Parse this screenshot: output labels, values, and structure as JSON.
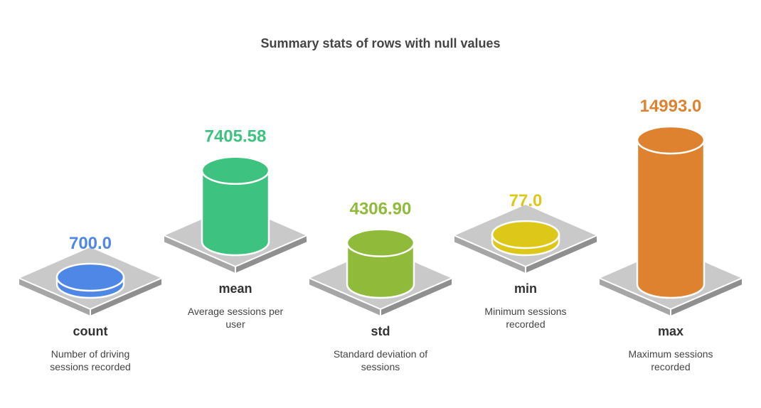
{
  "chart_data": {
    "type": "bar",
    "title": "Summary stats of rows with null values",
    "categories": [
      "count",
      "mean",
      "std",
      "min",
      "max"
    ],
    "values": [
      700.0,
      7405.58,
      4306.9,
      77.0,
      14993.0
    ],
    "value_labels": [
      "700.0",
      "7405.58",
      "4306.90",
      "77.0",
      "14993.0"
    ],
    "descriptions": [
      [
        "Number of driving",
        "sessions recorded"
      ],
      [
        "Average sessions per",
        "user"
      ],
      [
        "Standard deviation of",
        "sessions"
      ],
      [
        "Minimum sessions",
        "recorded"
      ],
      [
        "Maximum sessions",
        "recorded"
      ]
    ],
    "colors": [
      "#4f87e6",
      "#3ec27f",
      "#8fba3a",
      "#ddc81a",
      "#df822f"
    ],
    "xlabel": "",
    "ylabel": ""
  }
}
